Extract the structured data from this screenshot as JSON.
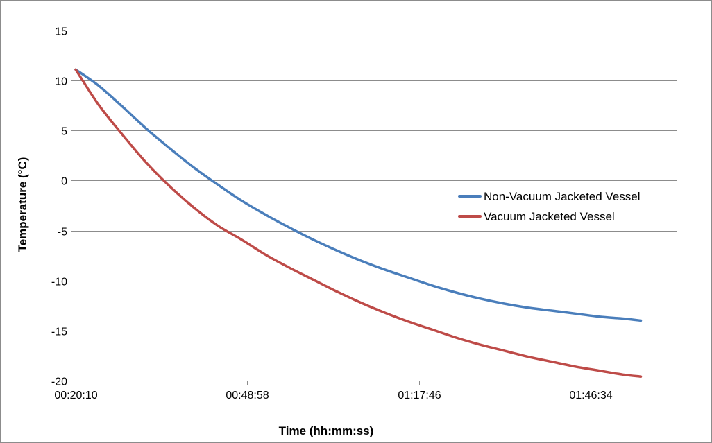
{
  "chart_data": {
    "type": "line",
    "title": "",
    "xlabel": "Time (hh:mm:ss)",
    "ylabel": "Temperature (°C)",
    "xlim": [
      "00:20:10",
      "02:01:00"
    ],
    "ylim": [
      -20,
      15
    ],
    "x_ticks": [
      "00:20:10",
      "00:48:58",
      "01:17:46",
      "01:46:34"
    ],
    "y_ticks": [
      15,
      10,
      5,
      0,
      -5,
      -10,
      -15,
      -20
    ],
    "grid": "horizontal",
    "legend": "right",
    "series": [
      {
        "name": "Non-Vacuum Jacketed Vessel",
        "color": "#4a7ebb",
        "x": [
          "00:20:10",
          "00:24:00",
          "00:28:00",
          "00:32:00",
          "00:36:00",
          "00:40:00",
          "00:44:00",
          "00:48:00",
          "00:52:00",
          "00:56:00",
          "01:00:00",
          "01:04:00",
          "01:08:00",
          "01:12:00",
          "01:16:00",
          "01:20:00",
          "01:24:00",
          "01:28:00",
          "01:32:00",
          "01:36:00",
          "01:40:00",
          "01:44:00",
          "01:48:00",
          "01:52:00",
          "01:55:00"
        ],
        "y": [
          11.1,
          9.5,
          7.4,
          5.2,
          3.2,
          1.3,
          -0.4,
          -2.0,
          -3.4,
          -4.7,
          -5.9,
          -7.0,
          -8.0,
          -8.9,
          -9.7,
          -10.5,
          -11.2,
          -11.8,
          -12.3,
          -12.7,
          -13.0,
          -13.3,
          -13.6,
          -13.8,
          -14.0
        ]
      },
      {
        "name": "Vacuum Jacketed Vessel",
        "color": "#be4b48",
        "x": [
          "00:20:10",
          "00:24:00",
          "00:28:00",
          "00:32:00",
          "00:36:00",
          "00:40:00",
          "00:44:00",
          "00:48:00",
          "00:52:00",
          "00:56:00",
          "01:00:00",
          "01:04:00",
          "01:08:00",
          "01:12:00",
          "01:16:00",
          "01:20:00",
          "01:24:00",
          "01:28:00",
          "01:32:00",
          "01:36:00",
          "01:40:00",
          "01:44:00",
          "01:48:00",
          "01:52:00",
          "01:55:00"
        ],
        "y": [
          11.1,
          7.6,
          4.6,
          1.8,
          -0.6,
          -2.7,
          -4.5,
          -5.9,
          -7.4,
          -8.7,
          -9.9,
          -11.1,
          -12.2,
          -13.2,
          -14.1,
          -14.9,
          -15.7,
          -16.4,
          -17.0,
          -17.6,
          -18.1,
          -18.6,
          -19.0,
          -19.4,
          -19.6
        ]
      }
    ]
  }
}
